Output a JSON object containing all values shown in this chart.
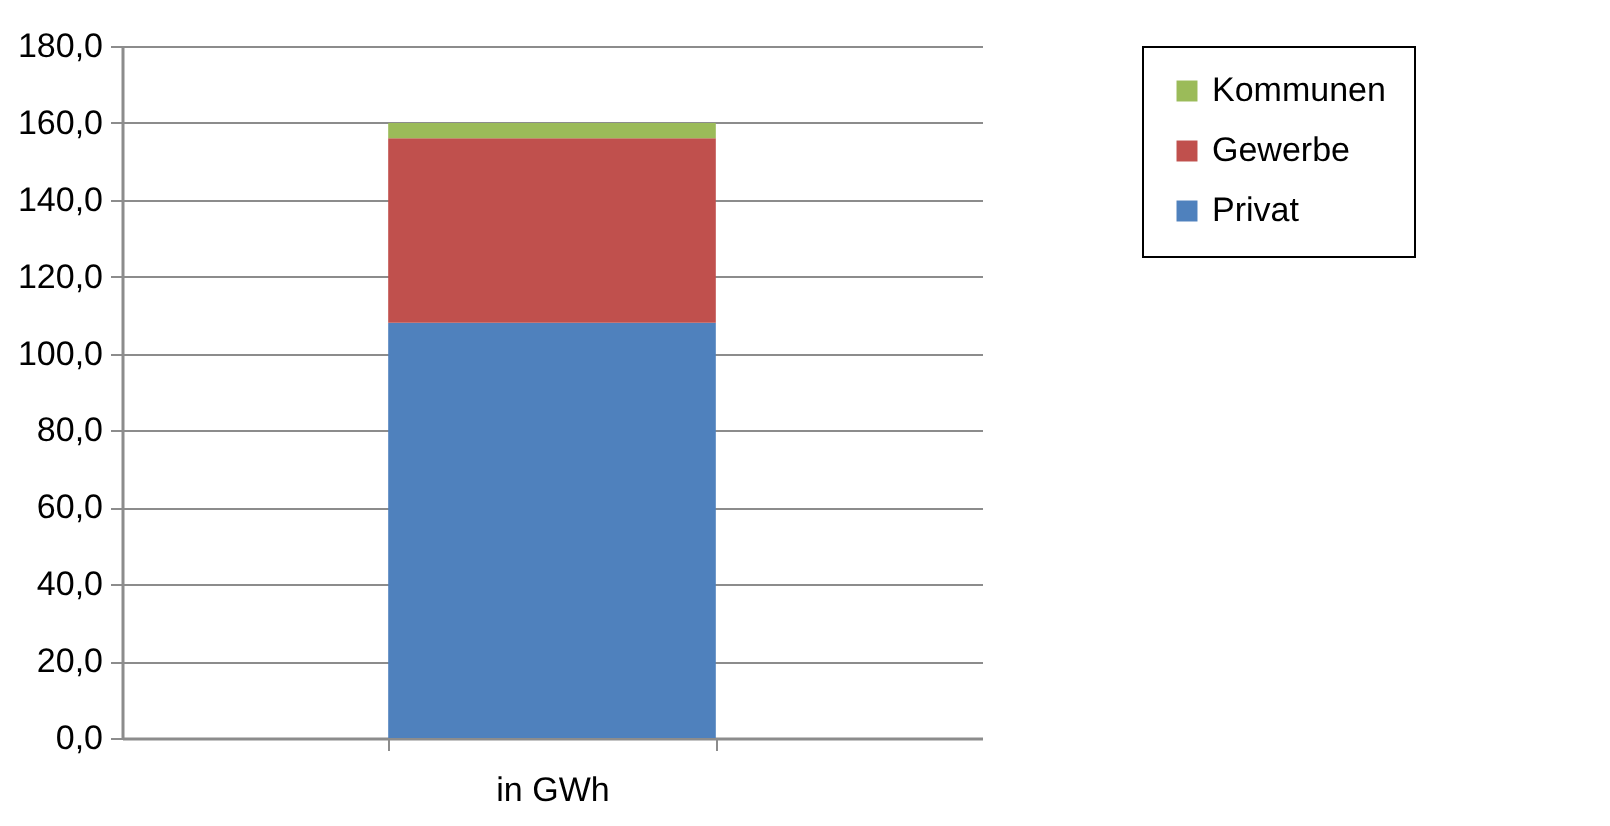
{
  "chart_data": {
    "type": "bar",
    "stacked": true,
    "categories": [
      "in GWh"
    ],
    "series": [
      {
        "name": "Privat",
        "color": "#4f81bd",
        "values": [
          108
        ]
      },
      {
        "name": "Gewerbe",
        "color": "#c0504d",
        "values": [
          48
        ]
      },
      {
        "name": "Kommunen",
        "color": "#9bbb59",
        "values": [
          4
        ]
      }
    ],
    "ylim": [
      0,
      180
    ],
    "yticks": [
      {
        "value": 0,
        "label": "0,0"
      },
      {
        "value": 20,
        "label": "20,0"
      },
      {
        "value": 40,
        "label": "40,0"
      },
      {
        "value": 60,
        "label": "60,0"
      },
      {
        "value": 80,
        "label": "80,0"
      },
      {
        "value": 100,
        "label": "100,0"
      },
      {
        "value": 120,
        "label": "120,0"
      },
      {
        "value": 140,
        "label": "140,0"
      },
      {
        "value": 160,
        "label": "160,0"
      },
      {
        "value": 180,
        "label": "180,0"
      }
    ],
    "grid": "y",
    "legend": "right"
  }
}
